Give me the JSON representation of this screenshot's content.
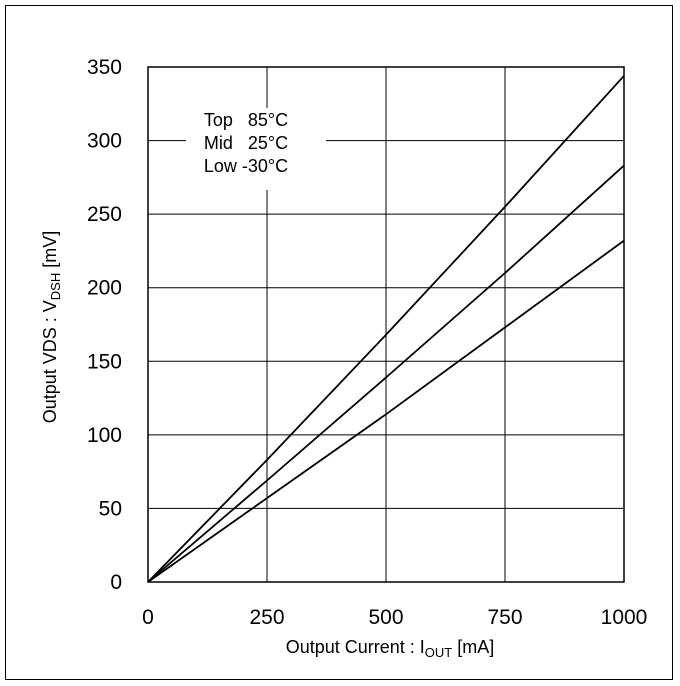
{
  "chart_data": {
    "type": "line",
    "xlabel": {
      "main": "Output Current : I",
      "sub": "OUT",
      "unit": " [mA]"
    },
    "ylabel": {
      "main": "Output VDS : V",
      "sub": "DSH",
      "unit": " [mV]"
    },
    "xlim": [
      0,
      1000
    ],
    "ylim": [
      0,
      350
    ],
    "x_ticks": [
      0,
      250,
      500,
      750,
      1000
    ],
    "y_ticks": [
      0,
      50,
      100,
      150,
      200,
      250,
      300,
      350
    ],
    "grid": true,
    "legend": {
      "placement": "top-left",
      "lines": [
        "Top   85°C",
        "Mid   25°C",
        "Low -30°C"
      ]
    },
    "series": [
      {
        "name": "Top",
        "x": [
          0,
          250,
          500,
          750,
          1000
        ],
        "values": [
          0,
          83,
          168,
          255,
          344
        ]
      },
      {
        "name": "Mid",
        "x": [
          0,
          250,
          500,
          750,
          1000
        ],
        "values": [
          0,
          69,
          139,
          210,
          283
        ]
      },
      {
        "name": "Low",
        "x": [
          0,
          250,
          500,
          750,
          1000
        ],
        "values": [
          0,
          57,
          114,
          173,
          232
        ]
      }
    ],
    "line_color": "#000000"
  }
}
